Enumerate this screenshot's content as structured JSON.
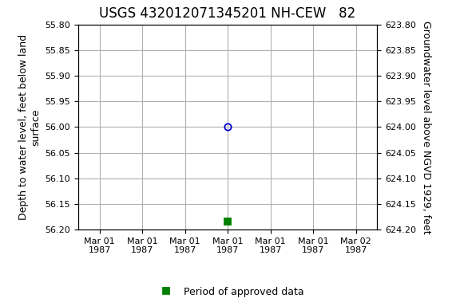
{
  "chart_data": {
    "type": "scatter",
    "title": "USGS 432012071345201 NH-CEW   82",
    "y_label": "Depth to water level, feet below land\nsurface",
    "y2_label": "Groundwater level above NGVD 1929, feet",
    "categories": [
      "Mar 01\n1987",
      "Mar 01\n1987",
      "Mar 01\n1987",
      "Mar 01\n1987",
      "Mar 01\n1987",
      "Mar 01\n1987",
      "Mar 02\n1987"
    ],
    "series": [
      {
        "color": "#0000cc",
        "marker": "o",
        "values": [
          null,
          null,
          null,
          56.0,
          null,
          null,
          null
        ]
      },
      {
        "name": "Period of approved data",
        "color": "#008000",
        "marker": "s",
        "values": [
          null,
          null,
          null,
          56.185,
          null,
          null,
          null
        ]
      }
    ],
    "ylim": [
      56.2,
      55.8
    ],
    "yticks": [
      {
        "value": 55.8,
        "label": "55.80"
      },
      {
        "value": 55.85,
        "label": "55.85"
      },
      {
        "value": 55.9,
        "label": "55.90"
      },
      {
        "value": 55.95,
        "label": "55.95"
      },
      {
        "value": 56.0,
        "label": "56.00"
      },
      {
        "value": 56.05,
        "label": "56.05"
      },
      {
        "value": 56.1,
        "label": "56.10"
      },
      {
        "value": 56.15,
        "label": "56.15"
      },
      {
        "value": 56.2,
        "label": "56.20"
      }
    ],
    "y2lim": [
      624.2,
      623.8
    ],
    "y2ticks": [
      {
        "value": 623.8,
        "label": "623.80"
      },
      {
        "value": 623.85,
        "label": "623.85"
      },
      {
        "value": 623.9,
        "label": "623.90"
      },
      {
        "value": 623.95,
        "label": "623.95"
      },
      {
        "value": 624.0,
        "label": "624.00"
      },
      {
        "value": 624.05,
        "label": "624.05"
      },
      {
        "value": 624.1,
        "label": "624.10"
      },
      {
        "value": 624.15,
        "label": "624.15"
      },
      {
        "value": 624.2,
        "label": "624.20"
      }
    ],
    "grid": true,
    "legend": "lower center"
  }
}
